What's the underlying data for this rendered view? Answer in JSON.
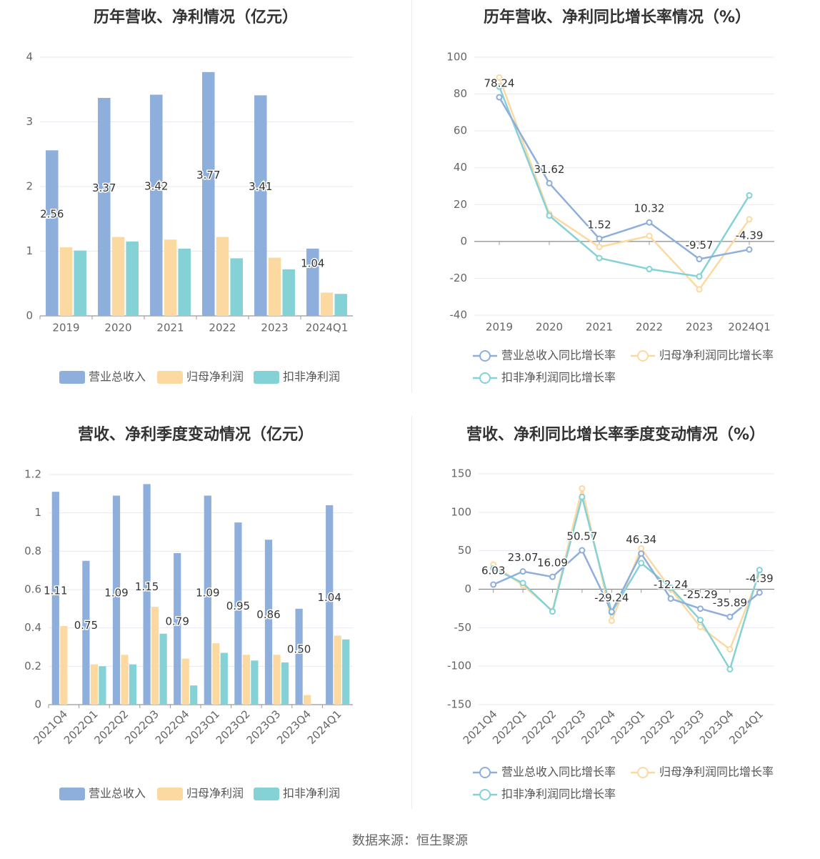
{
  "source": "数据来源：恒生聚源",
  "colors": {
    "revenue": "#8eafdc",
    "net_profit": "#fdd9a2",
    "deducted_profit": "#84d2d6"
  },
  "chart_data": [
    {
      "type": "bar",
      "title": "历年营收、净利情况（亿元）",
      "categories": [
        "2019",
        "2020",
        "2021",
        "2022",
        "2023",
        "2024Q1"
      ],
      "ylim": [
        0,
        4
      ],
      "yticks": [
        0,
        1,
        2,
        3,
        4
      ],
      "series": [
        {
          "name": "营业总收入",
          "values": [
            2.56,
            3.37,
            3.42,
            3.77,
            3.41,
            1.04
          ],
          "labels": [
            "2.56",
            "3.37",
            "3.42",
            "3.77",
            "3.41",
            "1.04"
          ]
        },
        {
          "name": "归母净利润",
          "values": [
            1.06,
            1.22,
            1.18,
            1.22,
            0.9,
            0.36
          ]
        },
        {
          "name": "扣非净利润",
          "values": [
            1.01,
            1.15,
            1.04,
            0.89,
            0.72,
            0.34
          ]
        }
      ],
      "legend": "bottom"
    },
    {
      "type": "line",
      "title": "历年营收、净利同比增长率情况（%）",
      "categories": [
        "2019",
        "2020",
        "2021",
        "2022",
        "2023",
        "2024Q1"
      ],
      "ylim": [
        -40,
        100
      ],
      "yticks": [
        -40,
        -20,
        0,
        20,
        40,
        60,
        80,
        100
      ],
      "series": [
        {
          "name": "营业总收入同比增长率",
          "values": [
            78.24,
            31.62,
            1.52,
            10.32,
            -9.57,
            -4.39
          ],
          "labels": [
            "78.24",
            "31.62",
            "1.52",
            "10.32",
            "-9.57",
            "-4.39"
          ]
        },
        {
          "name": "归母净利润同比增长率",
          "values": [
            89,
            15,
            -3,
            3,
            -26,
            12
          ]
        },
        {
          "name": "扣非净利润同比增长率",
          "values": [
            84,
            14,
            -9,
            -15,
            -19,
            25
          ]
        }
      ],
      "legend": "bottom"
    },
    {
      "type": "bar",
      "title": "营收、净利季度变动情况（亿元）",
      "categories": [
        "2021Q4",
        "2022Q1",
        "2022Q2",
        "2022Q3",
        "2022Q4",
        "2023Q1",
        "2023Q2",
        "2023Q3",
        "2023Q4",
        "2024Q1"
      ],
      "ylim": [
        0,
        1.2
      ],
      "yticks": [
        0,
        0.2,
        0.4,
        0.6,
        0.8,
        1,
        1.2
      ],
      "ytick_labels": [
        "0",
        "0.2",
        "0.4",
        "0.6",
        "0.8",
        "1",
        "1.2"
      ],
      "series": [
        {
          "name": "营业总收入",
          "values": [
            1.11,
            0.75,
            1.09,
            1.15,
            0.79,
            1.09,
            0.95,
            0.86,
            0.5,
            1.04
          ],
          "labels": [
            "1.11",
            "0.75",
            "1.09",
            "1.15",
            "0.79",
            "1.09",
            "0.95",
            "0.86",
            "0.50",
            "1.04"
          ]
        },
        {
          "name": "归母净利润",
          "values": [
            0.41,
            0.21,
            0.26,
            0.51,
            0.24,
            0.32,
            0.26,
            0.26,
            0.05,
            0.36
          ]
        },
        {
          "name": "扣非净利润",
          "values": [
            0,
            0.2,
            0.21,
            0.37,
            0.1,
            0.27,
            0.23,
            0.22,
            0,
            0.34
          ]
        }
      ],
      "legend": "bottom"
    },
    {
      "type": "line",
      "title": "营收、净利同比增长率季度变动情况（%）",
      "categories": [
        "2021Q4",
        "2022Q1",
        "2022Q2",
        "2022Q3",
        "2022Q4",
        "2023Q1",
        "2023Q2",
        "2023Q3",
        "2023Q4",
        "2024Q1"
      ],
      "ylim": [
        -150,
        150
      ],
      "yticks": [
        -150,
        -100,
        -50,
        0,
        50,
        100,
        150
      ],
      "series": [
        {
          "name": "营业总收入同比增长率",
          "values": [
            6.03,
            23.07,
            16.09,
            50.57,
            -29.24,
            46.34,
            -12.24,
            -25.29,
            -35.89,
            -4.39
          ],
          "labels": [
            "6.03",
            "23.07",
            "16.09",
            "50.57",
            "-29.24",
            "46.34",
            "-12.24",
            "-25.29",
            "-35.89",
            "-4.39"
          ]
        },
        {
          "name": "归母净利润同比增长率",
          "values": [
            32,
            5,
            -28,
            131,
            -41,
            53,
            0,
            -49,
            -78,
            20
          ]
        },
        {
          "name": "扣非净利润同比增长率",
          "values": [
            27,
            8,
            -29,
            120,
            -30,
            34,
            2,
            -40,
            -104,
            25
          ]
        }
      ],
      "legend": "bottom"
    }
  ]
}
